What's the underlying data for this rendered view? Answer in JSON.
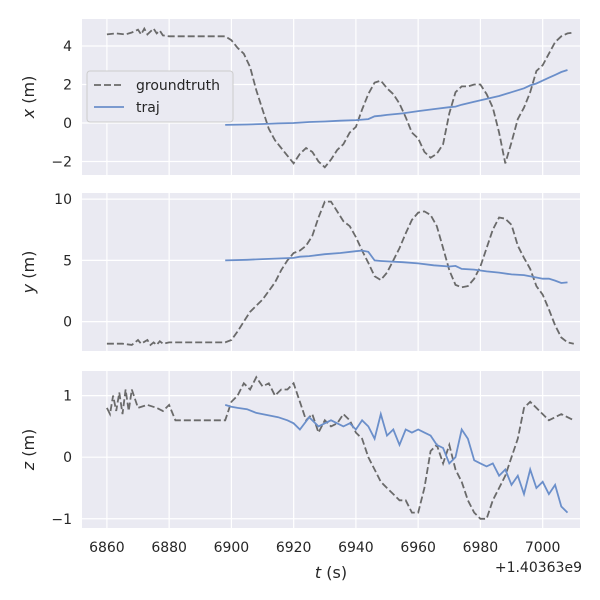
{
  "chart_data": {
    "type": "line",
    "xlabel": "t (s)",
    "offset_label": "+1.40363e9",
    "xlim": [
      6852,
      7012
    ],
    "xticks": [
      6860,
      6880,
      6900,
      6920,
      6940,
      6960,
      6980,
      7000
    ],
    "legend": {
      "position": "upper-left of top panel",
      "entries": [
        "groundtruth",
        "traj"
      ]
    },
    "panels": [
      {
        "ylabel": "x (m)",
        "ylim": [
          -2.7,
          5.4
        ],
        "yticks": [
          -2,
          0,
          2,
          4
        ],
        "series": [
          {
            "name": "groundtruth",
            "style": "dashed",
            "color": "#6a6a6a",
            "x": [
              6860,
              6863,
              6866,
              6868,
              6870,
              6871,
              6872,
              6873,
              6874,
              6875,
              6876,
              6877,
              6878,
              6880,
              6885,
              6890,
              6895,
              6898,
              6900,
              6902,
              6904,
              6906,
              6908,
              6910,
              6912,
              6914,
              6916,
              6918,
              6920,
              6922,
              6924,
              6926,
              6928,
              6930,
              6932,
              6934,
              6936,
              6938,
              6940,
              6942,
              6944,
              6946,
              6948,
              6950,
              6952,
              6954,
              6956,
              6958,
              6960,
              6962,
              6964,
              6966,
              6968,
              6970,
              6972,
              6974,
              6976,
              6978,
              6980,
              6982,
              6984,
              6986,
              6987,
              6988,
              6990,
              6992,
              6994,
              6996,
              6998,
              7000,
              7002,
              7004,
              7006,
              7008,
              7010
            ],
            "y": [
              4.6,
              4.65,
              4.6,
              4.7,
              4.85,
              4.6,
              4.9,
              4.6,
              4.75,
              4.9,
              4.65,
              4.8,
              4.55,
              4.5,
              4.5,
              4.5,
              4.5,
              4.5,
              4.3,
              3.9,
              3.6,
              2.9,
              1.7,
              0.7,
              -0.3,
              -0.9,
              -1.3,
              -1.7,
              -2.1,
              -1.6,
              -1.3,
              -1.5,
              -2.0,
              -2.3,
              -1.9,
              -1.4,
              -1.1,
              -0.5,
              -0.2,
              0.7,
              1.5,
              2.1,
              2.2,
              1.8,
              1.5,
              1.0,
              0.3,
              -0.5,
              -0.8,
              -1.5,
              -1.8,
              -1.6,
              -1.1,
              0.5,
              1.6,
              1.9,
              1.9,
              2.0,
              2.0,
              1.5,
              0.8,
              -0.5,
              -1.3,
              -2.1,
              -1.0,
              0.2,
              0.8,
              1.6,
              2.7,
              3.0,
              3.6,
              4.2,
              4.5,
              4.65,
              4.7
            ]
          },
          {
            "name": "traj",
            "style": "solid",
            "color": "#6b8fca",
            "x": [
              6898,
              6905,
              6910,
              6915,
              6920,
              6925,
              6930,
              6935,
              6940,
              6944,
              6946,
              6948,
              6950,
              6955,
              6960,
              6965,
              6970,
              6972,
              6974,
              6978,
              6982,
              6986,
              6990,
              6994,
              6996,
              6998,
              7000,
              7002,
              7004,
              7006,
              7008
            ],
            "y": [
              -0.1,
              -0.08,
              -0.05,
              -0.02,
              0.0,
              0.05,
              0.08,
              0.12,
              0.15,
              0.2,
              0.35,
              0.38,
              0.42,
              0.5,
              0.62,
              0.72,
              0.82,
              0.85,
              0.95,
              1.1,
              1.25,
              1.4,
              1.6,
              1.8,
              1.95,
              2.05,
              2.2,
              2.35,
              2.5,
              2.65,
              2.75
            ]
          }
        ]
      },
      {
        "ylabel": "y (m)",
        "ylim": [
          -2.4,
          10.5
        ],
        "yticks": [
          0,
          5,
          10
        ],
        "series": [
          {
            "name": "groundtruth",
            "style": "dashed",
            "color": "#6a6a6a",
            "x": [
              6860,
              6865,
              6868,
              6870,
              6871,
              6873,
              6874,
              6875,
              6876,
              6877,
              6878,
              6880,
              6885,
              6890,
              6895,
              6898,
              6900,
              6902,
              6904,
              6906,
              6908,
              6910,
              6912,
              6914,
              6916,
              6918,
              6920,
              6922,
              6924,
              6926,
              6928,
              6930,
              6932,
              6934,
              6936,
              6938,
              6940,
              6942,
              6944,
              6946,
              6948,
              6950,
              6952,
              6954,
              6956,
              6958,
              6960,
              6962,
              6964,
              6966,
              6968,
              6970,
              6972,
              6974,
              6976,
              6978,
              6980,
              6982,
              6984,
              6986,
              6988,
              6990,
              6992,
              6994,
              6996,
              6998,
              7000,
              7002,
              7004,
              7006,
              7008,
              7010
            ],
            "y": [
              -1.8,
              -1.8,
              -1.9,
              -1.5,
              -1.8,
              -1.5,
              -1.9,
              -1.7,
              -1.9,
              -1.6,
              -1.8,
              -1.7,
              -1.7,
              -1.7,
              -1.7,
              -1.7,
              -1.5,
              -0.8,
              0.0,
              0.8,
              1.3,
              1.8,
              2.5,
              3.2,
              4.2,
              5.0,
              5.6,
              5.8,
              6.2,
              7.0,
              8.5,
              9.8,
              9.8,
              9.0,
              8.2,
              7.8,
              6.9,
              5.8,
              4.8,
              3.7,
              3.4,
              4.0,
              5.0,
              6.0,
              7.2,
              8.3,
              8.9,
              9.0,
              8.7,
              7.8,
              6.0,
              4.2,
              3.0,
              2.8,
              2.9,
              3.5,
              4.5,
              6.0,
              7.5,
              8.5,
              8.4,
              7.9,
              6.2,
              5.2,
              4.3,
              2.9,
              2.2,
              1.0,
              -0.3,
              -1.3,
              -1.7,
              -1.8
            ]
          },
          {
            "name": "traj",
            "style": "solid",
            "color": "#6b8fca",
            "x": [
              6898,
              6905,
              6910,
              6915,
              6920,
              6922,
              6925,
              6930,
              6935,
              6940,
              6942,
              6944,
              6946,
              6948,
              6955,
              6960,
              6965,
              6970,
              6972,
              6974,
              6978,
              6982,
              6986,
              6990,
              6994,
              6998,
              7000,
              7002,
              7004,
              7006,
              7008
            ],
            "y": [
              5.0,
              5.05,
              5.1,
              5.15,
              5.2,
              5.3,
              5.35,
              5.5,
              5.6,
              5.75,
              5.8,
              5.7,
              5.0,
              4.95,
              4.85,
              4.75,
              4.6,
              4.5,
              4.55,
              4.3,
              4.25,
              4.1,
              4.0,
              3.85,
              3.8,
              3.6,
              3.5,
              3.5,
              3.35,
              3.15,
              3.2
            ]
          }
        ]
      },
      {
        "ylabel": "z (m)",
        "ylim": [
          -1.15,
          1.4
        ],
        "yticks": [
          -1,
          0,
          1
        ],
        "series": [
          {
            "name": "groundtruth",
            "style": "dashed",
            "color": "#6a6a6a",
            "x": [
              6860,
              6861,
              6862,
              6863,
              6864,
              6865,
              6866,
              6867,
              6868,
              6870,
              6873,
              6876,
              6878,
              6880,
              6882,
              6885,
              6890,
              6895,
              6898,
              6900,
              6902,
              6904,
              6906,
              6908,
              6910,
              6912,
              6914,
              6916,
              6918,
              6920,
              6922,
              6924,
              6926,
              6928,
              6930,
              6932,
              6934,
              6936,
              6938,
              6940,
              6942,
              6944,
              6946,
              6948,
              6950,
              6952,
              6954,
              6956,
              6958,
              6960,
              6962,
              6964,
              6966,
              6968,
              6970,
              6972,
              6974,
              6976,
              6978,
              6980,
              6982,
              6984,
              6986,
              6988,
              6990,
              6992,
              6994,
              6996,
              6998,
              7000,
              7002,
              7004,
              7006,
              7008,
              7010
            ],
            "y": [
              0.8,
              0.7,
              1.0,
              0.75,
              1.05,
              0.7,
              1.1,
              0.75,
              1.1,
              0.8,
              0.85,
              0.8,
              0.75,
              0.85,
              0.6,
              0.6,
              0.6,
              0.6,
              0.6,
              0.9,
              1.0,
              1.2,
              1.1,
              1.3,
              1.15,
              1.2,
              1.0,
              1.1,
              1.1,
              1.2,
              0.9,
              0.6,
              0.7,
              0.4,
              0.6,
              0.5,
              0.55,
              0.7,
              0.6,
              0.4,
              0.3,
              0.0,
              -0.2,
              -0.4,
              -0.5,
              -0.6,
              -0.7,
              -0.7,
              -0.9,
              -0.9,
              -0.5,
              0.1,
              0.2,
              -0.1,
              0.2,
              -0.2,
              -0.4,
              -0.7,
              -0.9,
              -1.0,
              -1.0,
              -0.7,
              -0.5,
              -0.3,
              0.0,
              0.3,
              0.8,
              0.9,
              0.8,
              0.7,
              0.6,
              0.65,
              0.7,
              0.65,
              0.6
            ]
          },
          {
            "name": "traj",
            "style": "solid",
            "color": "#6b8fca",
            "x": [
              6898,
              6900,
              6902,
              6905,
              6908,
              6910,
              6915,
              6918,
              6920,
              6922,
              6925,
              6928,
              6930,
              6932,
              6934,
              6936,
              6938,
              6940,
              6942,
              6944,
              6946,
              6948,
              6950,
              6952,
              6954,
              6956,
              6958,
              6960,
              6962,
              6964,
              6966,
              6968,
              6970,
              6972,
              6974,
              6976,
              6978,
              6980,
              6982,
              6984,
              6986,
              6988,
              6990,
              6992,
              6994,
              6996,
              6998,
              7000,
              7002,
              7004,
              7006,
              7008
            ],
            "y": [
              0.85,
              0.82,
              0.8,
              0.78,
              0.72,
              0.7,
              0.65,
              0.6,
              0.55,
              0.45,
              0.65,
              0.5,
              0.55,
              0.6,
              0.55,
              0.5,
              0.55,
              0.45,
              0.6,
              0.5,
              0.3,
              0.7,
              0.35,
              0.45,
              0.2,
              0.45,
              0.4,
              0.45,
              0.4,
              0.35,
              0.2,
              0.15,
              -0.1,
              0.0,
              0.45,
              0.3,
              -0.05,
              -0.1,
              -0.15,
              -0.1,
              -0.3,
              -0.2,
              -0.45,
              -0.3,
              -0.6,
              -0.2,
              -0.5,
              -0.4,
              -0.6,
              -0.45,
              -0.8,
              -0.9
            ]
          }
        ]
      }
    ]
  }
}
